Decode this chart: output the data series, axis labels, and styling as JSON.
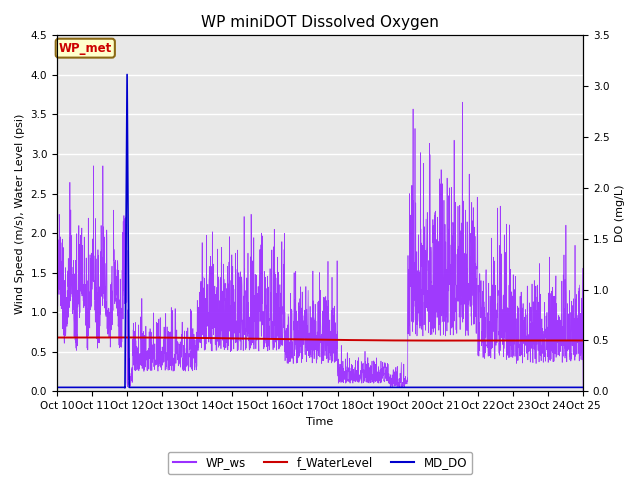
{
  "title": "WP miniDOT Dissolved Oxygen",
  "ylabel_left": "Wind Speed (m/s), Water Level (psi)",
  "ylabel_right": "DO (mg/L)",
  "xlabel": "Time",
  "ylim_left": [
    0.0,
    4.5
  ],
  "ylim_right": [
    0.0,
    3.5
  ],
  "xtick_labels": [
    "Oct 10",
    "Oct 11",
    "Oct 12",
    "Oct 13",
    "Oct 14",
    "Oct 15",
    "Oct 16",
    "Oct 17",
    "Oct 18",
    "Oct 19",
    "Oct 20",
    "Oct 21",
    "Oct 22",
    "Oct 23",
    "Oct 24",
    "Oct 25"
  ],
  "color_ws": "#9b30ff",
  "color_wl": "#cc0000",
  "color_do": "#0000cc",
  "background_color": "#e8e8e8",
  "legend_box_color": "#ffffcc",
  "legend_box_border": "#8b6914",
  "legend_box_text": "#cc0000",
  "legend_box_label": "WP_met",
  "legend_items": [
    "WP_ws",
    "f_WaterLevel",
    "MD_DO"
  ],
  "title_fontsize": 11,
  "axis_label_fontsize": 8,
  "tick_label_fontsize": 7.5
}
